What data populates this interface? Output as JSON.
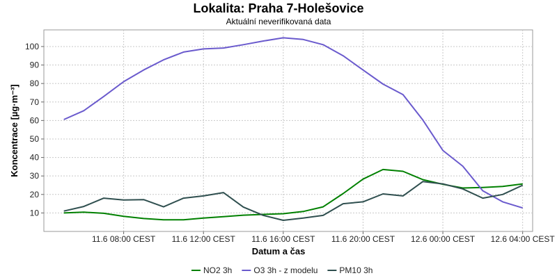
{
  "chart_data": {
    "type": "line",
    "title": "Lokalita: Praha 7-Holešovice",
    "subtitle": "Aktuální neverifikovaná data",
    "xlabel": "Datum a čas",
    "ylabel": "Koncentrace [µg·m⁻³]",
    "ylim": [
      0,
      109
    ],
    "yticks": [
      10,
      20,
      30,
      40,
      50,
      60,
      70,
      80,
      90,
      100
    ],
    "x_hours": [
      5,
      6,
      7,
      8,
      9,
      10,
      11,
      12,
      13,
      14,
      15,
      16,
      17,
      18,
      19,
      20,
      21,
      22,
      23,
      24,
      25,
      26,
      27,
      28
    ],
    "xlim_hours": [
      4,
      28.5
    ],
    "xticks": [
      {
        "hour": 8,
        "label": "11.6 08:00 CEST"
      },
      {
        "hour": 12,
        "label": "11.6 12:00 CEST"
      },
      {
        "hour": 16,
        "label": "11.6 16:00 CEST"
      },
      {
        "hour": 20,
        "label": "11.6 20:00 CEST"
      },
      {
        "hour": 24,
        "label": "12.6 00:00 CEST"
      },
      {
        "hour": 28,
        "label": "12.6 04:00 CEST"
      }
    ],
    "grid": true,
    "legend_position": "bottom",
    "series": [
      {
        "name": "NO2 3h",
        "color": "#008000",
        "values": [
          10,
          10.4,
          9.8,
          8.2,
          7,
          6.3,
          6.3,
          7.2,
          8,
          8.8,
          9.2,
          9.6,
          10.8,
          13.3,
          20.5,
          28.3,
          33.5,
          32.5,
          28,
          25.5,
          23.5,
          23.8,
          24.3,
          25.7
        ]
      },
      {
        "name": "O3 3h - z modelu",
        "color": "#6a5acd",
        "values": [
          60.5,
          65.3,
          73,
          81,
          87.3,
          92.8,
          97,
          98.7,
          99.2,
          101,
          103,
          104.7,
          103.8,
          101,
          95,
          87.3,
          79.7,
          74,
          60.2,
          43.8,
          35.3,
          22,
          16,
          12.7
        ]
      },
      {
        "name": "PM10 3h",
        "color": "#2f4f4f",
        "values": [
          11,
          13.5,
          18,
          17,
          17.2,
          13.3,
          18,
          19.2,
          21,
          13.2,
          8.7,
          6,
          7.2,
          8.7,
          15,
          16,
          20.3,
          19.2,
          27,
          25.7,
          23,
          18,
          20,
          25
        ]
      }
    ]
  }
}
